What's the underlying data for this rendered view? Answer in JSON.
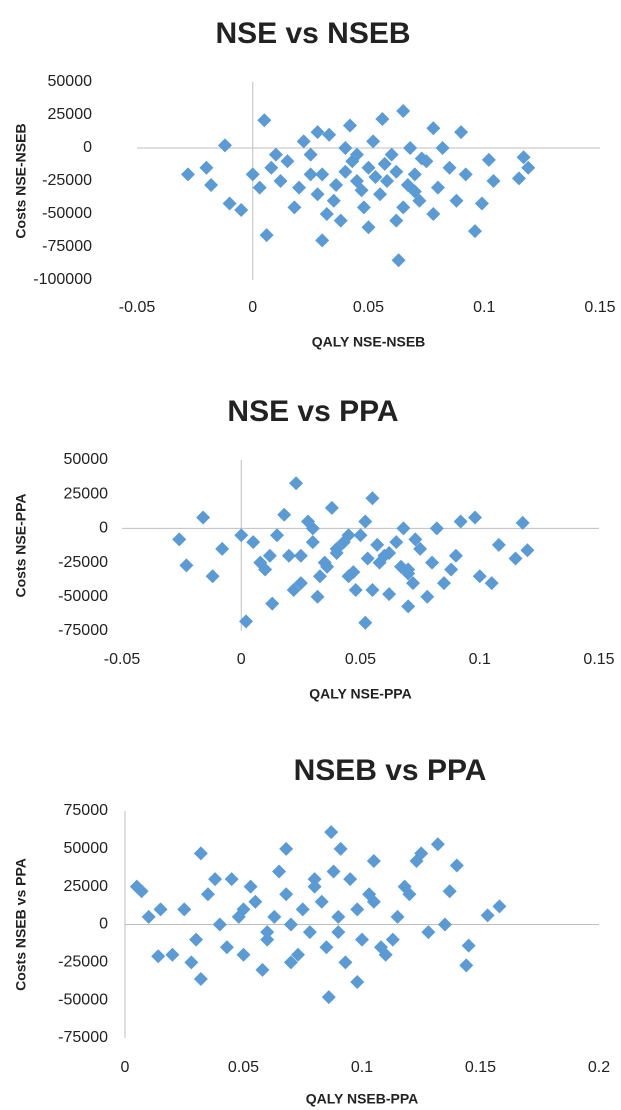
{
  "chart_data": [
    {
      "type": "scatter",
      "title": "NSE vs NSEB",
      "x_label": "QALY NSE-NSEB",
      "y_label": "Costs NSE-NSEB",
      "color": "#5b9bd5",
      "xlim": [
        -0.05,
        0.15
      ],
      "ylim": [
        -100000,
        50000
      ],
      "xticks": [
        -0.05,
        0,
        0.05,
        0.1,
        0.15
      ],
      "yticks": [
        50000,
        25000,
        0,
        -25000,
        -50000,
        -75000,
        -100000
      ],
      "x": [
        -0.028,
        0.005,
        0.006,
        0.065,
        0.063,
        0.096,
        0.117,
        0.119,
        0.115,
        0.102,
        0.104,
        0.099,
        0.09,
        0.078,
        0.056,
        0.03,
        0.042,
        -0.018,
        -0.012,
        -0.005,
        -0.01,
        0.0,
        0.015,
        0.02,
        0.025,
        0.03,
        0.035,
        0.04,
        0.045,
        0.05,
        0.055,
        0.06,
        0.065,
        0.07,
        0.075,
        0.08,
        0.085,
        0.012,
        0.018,
        0.022,
        0.028,
        0.033,
        0.038,
        0.043,
        0.048,
        0.052,
        0.058,
        0.062,
        0.068,
        0.072,
        0.078,
        0.082,
        0.088,
        0.01,
        0.032,
        0.047,
        0.057,
        0.067,
        0.073,
        0.04,
        0.053,
        0.062,
        0.025,
        0.036,
        0.045,
        0.07,
        0.092,
        0.003,
        0.008,
        -0.02,
        0.028,
        0.05
      ],
      "y": [
        -20000,
        21000,
        -66000,
        28000,
        -85000,
        -63000,
        -7000,
        -15000,
        -23000,
        -9000,
        -25000,
        -42000,
        12000,
        15000,
        22000,
        -70000,
        17000,
        -28000,
        2000,
        -47000,
        -42000,
        -20000,
        -10000,
        -30000,
        -5000,
        -20000,
        -40000,
        0,
        -25000,
        -15000,
        -35000,
        -5000,
        -45000,
        -20000,
        -10000,
        -30000,
        -15000,
        -25000,
        -45000,
        5000,
        -35000,
        10000,
        -55000,
        -10000,
        -45000,
        5000,
        -25000,
        -55000,
        0,
        -40000,
        -50000,
        0,
        -40000,
        -5000,
        -50000,
        -32000,
        -12000,
        -28000,
        -8000,
        -18000,
        -22000,
        -18000,
        -20000,
        -28000,
        -5000,
        -33000,
        -20000,
        -30000,
        -15000,
        -15000,
        12000,
        -60000
      ]
    },
    {
      "type": "scatter",
      "title": "NSE vs PPA",
      "x_label": "QALY NSE-PPA",
      "y_label": "Costs NSE-PPA",
      "color": "#5b9bd5",
      "xlim": [
        -0.05,
        0.15
      ],
      "ylim": [
        -75000,
        50000
      ],
      "xticks": [
        -0.05,
        0,
        0.05,
        0.1,
        0.15
      ],
      "yticks": [
        50000,
        25000,
        0,
        -25000,
        -50000,
        -75000
      ],
      "x": [
        -0.026,
        -0.023,
        -0.016,
        0.002,
        0.023,
        0.052,
        0.12,
        0.118,
        0.115,
        0.105,
        0.1,
        0.098,
        0.07,
        0.013,
        0.055,
        -0.012,
        0.108,
        0.092,
        0.005,
        0.01,
        0.015,
        0.02,
        0.025,
        0.03,
        0.035,
        0.04,
        0.045,
        0.05,
        0.055,
        0.06,
        0.065,
        0.07,
        0.075,
        0.08,
        0.085,
        0.008,
        0.018,
        0.022,
        0.028,
        0.033,
        0.038,
        0.043,
        0.048,
        0.052,
        0.058,
        0.062,
        0.068,
        0.072,
        0.078,
        0.082,
        0.088,
        0.0,
        0.032,
        0.047,
        0.057,
        0.067,
        0.073,
        0.04,
        0.053,
        0.062,
        0.025,
        0.036,
        0.045,
        0.07,
        0.09,
        -0.008,
        0.012,
        0.03
      ],
      "y": [
        -8000,
        -27000,
        8000,
        -68000,
        33000,
        -69000,
        -16000,
        4000,
        -22000,
        -40000,
        -35000,
        8000,
        -57000,
        -55000,
        22000,
        -35000,
        -12000,
        5000,
        -10000,
        -30000,
        -5000,
        -20000,
        -40000,
        0,
        -25000,
        -15000,
        -35000,
        -5000,
        -45000,
        -20000,
        -10000,
        -30000,
        -15000,
        -25000,
        -40000,
        -25000,
        10000,
        -45000,
        5000,
        -35000,
        15000,
        -10000,
        -45000,
        5000,
        -25000,
        -48000,
        0,
        -40000,
        -50000,
        0,
        -30000,
        -5000,
        -50000,
        -32000,
        -12000,
        -28000,
        -8000,
        -18000,
        -22000,
        -18000,
        -20000,
        -28000,
        -5000,
        -33000,
        -20000,
        -15000,
        -20000,
        -10000
      ]
    },
    {
      "type": "scatter",
      "title": "NSEB vs PPA",
      "x_label": "QALY NSEB-PPA",
      "y_label": "Costs NSEB vs PPA",
      "color": "#5b9bd5",
      "xlim": [
        0,
        0.2
      ],
      "ylim": [
        -75000,
        75000
      ],
      "xticks": [
        0,
        0.05,
        0.1,
        0.15,
        0.2
      ],
      "yticks": [
        75000,
        50000,
        25000,
        0,
        -25000,
        -50000,
        -75000
      ],
      "x": [
        0.005,
        0.007,
        0.01,
        0.014,
        0.02,
        0.032,
        0.032,
        0.068,
        0.087,
        0.086,
        0.091,
        0.132,
        0.14,
        0.158,
        0.153,
        0.144,
        0.145,
        0.125,
        0.123,
        0.137,
        0.098,
        0.105,
        0.025,
        0.03,
        0.035,
        0.04,
        0.045,
        0.05,
        0.055,
        0.06,
        0.065,
        0.07,
        0.075,
        0.08,
        0.085,
        0.09,
        0.095,
        0.1,
        0.105,
        0.11,
        0.115,
        0.12,
        0.028,
        0.038,
        0.048,
        0.058,
        0.068,
        0.078,
        0.088,
        0.098,
        0.108,
        0.118,
        0.128,
        0.043,
        0.053,
        0.063,
        0.073,
        0.083,
        0.093,
        0.103,
        0.113,
        0.05,
        0.07,
        0.09,
        0.06,
        0.08,
        0.015,
        0.135
      ],
      "y": [
        25000,
        22000,
        5000,
        -21000,
        -20000,
        47000,
        -36000,
        50000,
        61000,
        -48000,
        50000,
        53000,
        39000,
        12000,
        6000,
        -27000,
        -14000,
        47000,
        42000,
        22000,
        -38000,
        42000,
        10000,
        -10000,
        20000,
        0,
        30000,
        -20000,
        15000,
        -5000,
        35000,
        -25000,
        10000,
        25000,
        -15000,
        5000,
        30000,
        -10000,
        15000,
        -20000,
        5000,
        20000,
        -25000,
        30000,
        5000,
        -30000,
        20000,
        -5000,
        35000,
        10000,
        -15000,
        25000,
        -5000,
        -15000,
        25000,
        5000,
        -20000,
        15000,
        -25000,
        20000,
        -10000,
        10000,
        0,
        -5000,
        -10000,
        30000,
        10000,
        0
      ]
    }
  ]
}
